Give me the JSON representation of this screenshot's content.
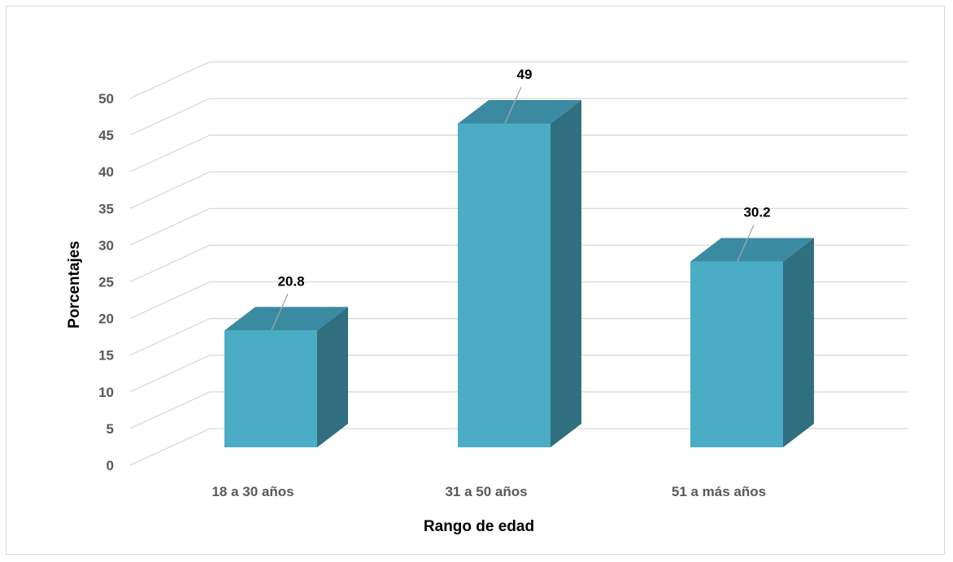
{
  "chart_data": {
    "type": "bar",
    "categories": [
      "18 a 30 años",
      "31 a 50 años",
      "51 a más años"
    ],
    "values": [
      20.8,
      49,
      30.2
    ],
    "data_labels": [
      "20.8",
      "49",
      "30.2"
    ],
    "title": "",
    "xlabel": "Rango de edad",
    "ylabel": "Porcentajes",
    "ylim": [
      0,
      50
    ],
    "yticks": [
      "0",
      "5",
      "10",
      "15",
      "20",
      "25",
      "30",
      "35",
      "40",
      "45",
      "50"
    ],
    "grid": true,
    "style": "3d-column",
    "colors": {
      "front": "#4bacc6",
      "top": "#3a8ba1",
      "side": "#2f6f80",
      "grid": "#d9d9d9",
      "tick_text": "#595959",
      "leader": "#a6a6a6"
    }
  }
}
